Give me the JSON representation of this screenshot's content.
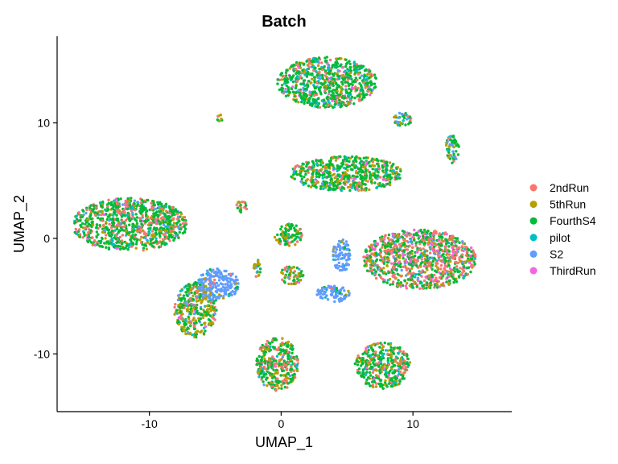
{
  "chart_data": {
    "type": "scatter",
    "title": "Batch",
    "xlabel": "UMAP_1",
    "ylabel": "UMAP_2",
    "xlim": [
      -17,
      17.5
    ],
    "ylim": [
      -15,
      17.5
    ],
    "xticks": [
      -10,
      0,
      10
    ],
    "yticks": [
      -10,
      0,
      10
    ],
    "xtick_labels": [
      "-10",
      "0",
      "10"
    ],
    "ytick_labels": [
      "-10",
      "0",
      "10"
    ],
    "grid": false,
    "legend_position": "right",
    "series": [
      {
        "name": "2ndRun",
        "color": "#F8766D"
      },
      {
        "name": "5thRun",
        "color": "#B79F00"
      },
      {
        "name": "FourthS4",
        "color": "#00BA38"
      },
      {
        "name": "pilot",
        "color": "#00BFC4"
      },
      {
        "name": "S2",
        "color": "#619CFF"
      },
      {
        "name": "ThirdRun",
        "color": "#F564E3"
      }
    ],
    "clusters": [
      {
        "cx": 3.5,
        "cy": 13.5,
        "rx": 3.8,
        "ry": 2.2,
        "mix": [
          0.12,
          0.08,
          0.62,
          0.1,
          0.04,
          0.04
        ]
      },
      {
        "cx": 5.0,
        "cy": 5.6,
        "rx": 4.3,
        "ry": 1.5,
        "mix": [
          0.1,
          0.18,
          0.62,
          0.04,
          0.03,
          0.03
        ]
      },
      {
        "cx": -11.5,
        "cy": 1.2,
        "rx": 4.4,
        "ry": 2.3,
        "mix": [
          0.2,
          0.1,
          0.58,
          0.06,
          0.04,
          0.02
        ]
      },
      {
        "cx": 10.5,
        "cy": -1.8,
        "rx": 4.3,
        "ry": 2.6,
        "mix": [
          0.3,
          0.16,
          0.36,
          0.04,
          0.04,
          0.1
        ]
      },
      {
        "cx": -6.5,
        "cy": -6.2,
        "rx": 1.6,
        "ry": 2.4,
        "mix": [
          0.1,
          0.35,
          0.4,
          0.06,
          0.07,
          0.02
        ]
      },
      {
        "cx": -4.8,
        "cy": -4.0,
        "rx": 1.6,
        "ry": 1.4,
        "mix": [
          0.02,
          0.04,
          0.06,
          0.03,
          0.85,
          0.0
        ]
      },
      {
        "cx": -0.3,
        "cy": -10.9,
        "rx": 1.6,
        "ry": 2.3,
        "mix": [
          0.22,
          0.14,
          0.56,
          0.04,
          0.02,
          0.02
        ]
      },
      {
        "cx": 7.7,
        "cy": -11.0,
        "rx": 2.1,
        "ry": 2.0,
        "mix": [
          0.18,
          0.14,
          0.56,
          0.08,
          0.02,
          0.02
        ]
      },
      {
        "cx": 0.5,
        "cy": 0.3,
        "rx": 1.1,
        "ry": 1.0,
        "mix": [
          0.1,
          0.2,
          0.62,
          0.04,
          0.02,
          0.02
        ]
      },
      {
        "cx": 0.8,
        "cy": -3.2,
        "rx": 0.9,
        "ry": 0.8,
        "mix": [
          0.18,
          0.3,
          0.44,
          0.04,
          0.02,
          0.02
        ]
      },
      {
        "cx": 4.6,
        "cy": -1.5,
        "rx": 0.7,
        "ry": 1.4,
        "mix": [
          0.02,
          0.03,
          0.05,
          0.05,
          0.85,
          0.0
        ]
      },
      {
        "cx": 4.0,
        "cy": -4.8,
        "rx": 1.4,
        "ry": 0.7,
        "mix": [
          0.02,
          0.05,
          0.05,
          0.08,
          0.8,
          0.0
        ]
      },
      {
        "cx": 13.0,
        "cy": 7.8,
        "rx": 0.5,
        "ry": 1.4,
        "mix": [
          0.1,
          0.1,
          0.5,
          0.05,
          0.25,
          0.0
        ]
      },
      {
        "cx": 9.2,
        "cy": 10.3,
        "rx": 0.7,
        "ry": 0.6,
        "mix": [
          0.1,
          0.1,
          0.6,
          0.1,
          0.1,
          0.0
        ]
      },
      {
        "cx": -3.0,
        "cy": 2.7,
        "rx": 0.4,
        "ry": 0.6,
        "mix": [
          0.2,
          0.2,
          0.5,
          0.05,
          0.05,
          0.0
        ]
      },
      {
        "cx": -4.6,
        "cy": 10.4,
        "rx": 0.3,
        "ry": 0.3,
        "mix": [
          0.3,
          0.2,
          0.4,
          0.05,
          0.05,
          0.0
        ]
      },
      {
        "cx": -1.8,
        "cy": -2.6,
        "rx": 0.3,
        "ry": 0.8,
        "mix": [
          0.1,
          0.5,
          0.3,
          0.05,
          0.05,
          0.0
        ]
      }
    ]
  }
}
